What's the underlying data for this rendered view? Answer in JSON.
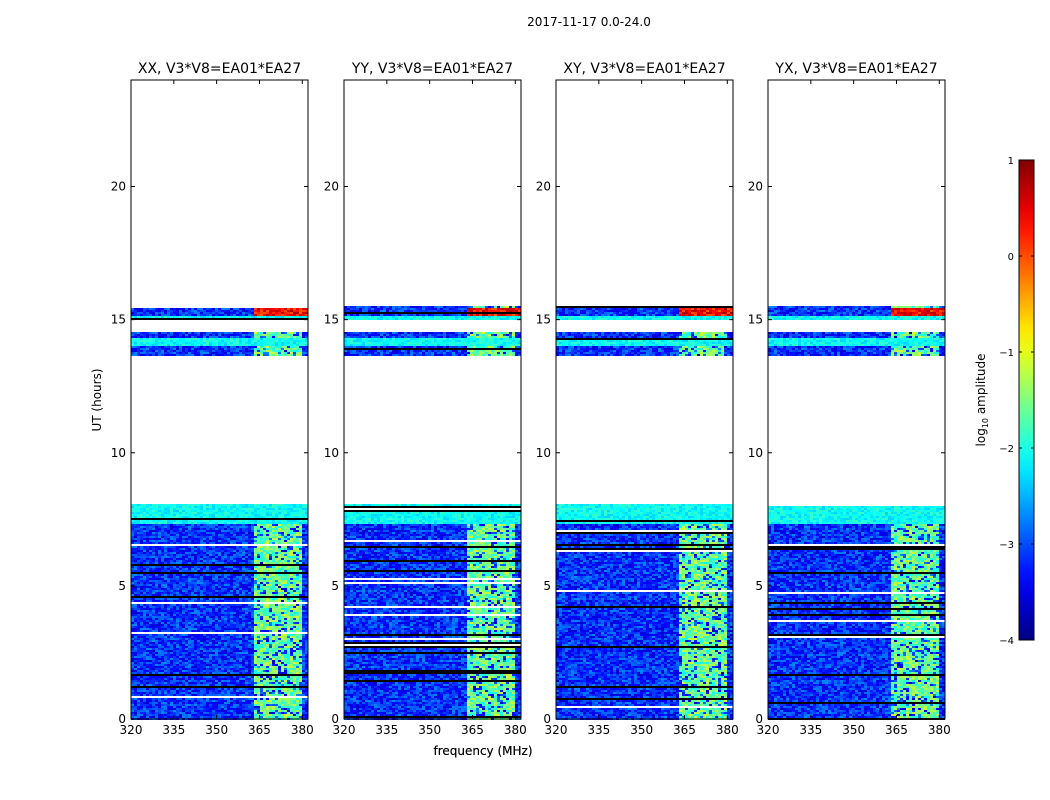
{
  "figure_title": "2017-11-17 0.0-24.0",
  "chart_data": [
    {
      "type": "heatmap",
      "title": "XX, V3*V8=EA01*EA27",
      "xlabel": "frequency (MHz)",
      "ylabel": "UT (hours)",
      "xlim": [
        320,
        382
      ],
      "ylim": [
        0,
        24
      ],
      "xticks": [
        320,
        335,
        350,
        365,
        380
      ],
      "yticks": [
        0,
        5,
        10,
        15,
        20
      ],
      "data_bands_hours": [
        [
          0,
          8.1
        ],
        [
          13.6,
          14.5
        ],
        [
          15.0,
          15.5
        ]
      ],
      "bright_freq_range_mhz": [
        363,
        380
      ],
      "peak_hours": [
        15.1,
        15.4
      ]
    },
    {
      "type": "heatmap",
      "title": "YY, V3*V8=EA01*EA27",
      "xlabel": "frequency (MHz)",
      "ylabel": "",
      "xlim": [
        320,
        382
      ],
      "ylim": [
        0,
        24
      ],
      "xticks": [
        320,
        335,
        350,
        365,
        380
      ],
      "yticks": [
        0,
        5,
        10,
        15,
        20
      ],
      "data_bands_hours": [
        [
          0,
          8.1
        ],
        [
          13.6,
          14.5
        ],
        [
          15.0,
          15.5
        ]
      ],
      "bright_freq_range_mhz": [
        363,
        380
      ],
      "peak_hours": [
        15.1,
        15.4
      ]
    },
    {
      "type": "heatmap",
      "title": "XY, V3*V8=EA01*EA27",
      "xlabel": "",
      "ylabel": "",
      "xlim": [
        320,
        382
      ],
      "ylim": [
        0,
        24
      ],
      "xticks": [
        320,
        335,
        350,
        365,
        380
      ],
      "yticks": [
        0,
        5,
        10,
        15,
        20
      ],
      "data_bands_hours": [
        [
          0,
          8.1
        ],
        [
          13.6,
          14.5
        ],
        [
          15.0,
          15.5
        ]
      ],
      "bright_freq_range_mhz": [
        363,
        380
      ],
      "peak_hours": [
        15.1,
        15.4
      ]
    },
    {
      "type": "heatmap",
      "title": "YX, V3*V8=EA01*EA27",
      "xlabel": "",
      "ylabel": "",
      "xlim": [
        320,
        382
      ],
      "ylim": [
        0,
        24
      ],
      "xticks": [
        320,
        335,
        350,
        365,
        380
      ],
      "yticks": [
        0,
        5,
        10,
        15,
        20
      ],
      "data_bands_hours": [
        [
          0,
          8.1
        ],
        [
          13.6,
          14.5
        ],
        [
          15.0,
          15.5
        ]
      ],
      "bright_freq_range_mhz": [
        363,
        380
      ],
      "peak_hours": [
        15.1,
        15.4
      ]
    }
  ],
  "colorbar": {
    "label_prefix": "log",
    "label_sub": "10",
    "label_suffix": " amplitude",
    "range": [
      -4,
      1
    ],
    "ticks": [
      1,
      0,
      -1,
      -2,
      -3,
      -4
    ],
    "tick_labels": [
      "1",
      "0",
      "−1",
      "−2",
      "−3",
      "−4"
    ],
    "colormap": "jet"
  }
}
